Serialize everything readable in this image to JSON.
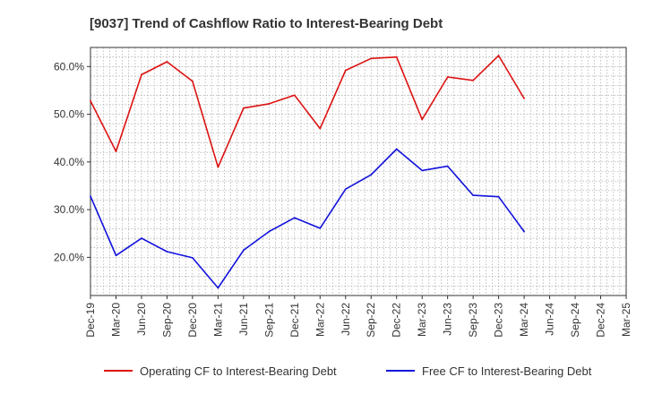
{
  "chart_data": {
    "type": "line",
    "title": "[9037]  Trend of Cashflow Ratio to Interest-Bearing Debt",
    "xlabel": "",
    "ylabel": "",
    "categories": [
      "Dec-19",
      "Mar-20",
      "Jun-20",
      "Sep-20",
      "Dec-20",
      "Mar-21",
      "Jun-21",
      "Sep-21",
      "Dec-21",
      "Mar-22",
      "Jun-22",
      "Sep-22",
      "Dec-22",
      "Mar-23",
      "Jun-23",
      "Sep-23",
      "Dec-23",
      "Mar-24",
      "Jun-24",
      "Sep-24",
      "Dec-24",
      "Mar-25"
    ],
    "ylim": [
      12,
      64
    ],
    "yticks": [
      20,
      30,
      40,
      50,
      60
    ],
    "ytick_labels": [
      "20.0%",
      "30.0%",
      "40.0%",
      "50.0%",
      "60.0%"
    ],
    "grid": true,
    "legend_position": "bottom",
    "series": [
      {
        "name": "Operating CF to Interest-Bearing Debt",
        "color": "#dd1111",
        "values": [
          52.8,
          42.2,
          58.3,
          61.0,
          56.9,
          38.9,
          51.3,
          52.2,
          54.0,
          47.0,
          59.2,
          61.7,
          62.0,
          48.9,
          57.8,
          57.1,
          62.3,
          53.3,
          null,
          null,
          null,
          null
        ]
      },
      {
        "name": "Free CF to Interest-Bearing Debt",
        "color": "#1111dd",
        "values": [
          32.8,
          20.4,
          24.0,
          21.2,
          19.9,
          13.6,
          21.5,
          25.4,
          28.3,
          26.1,
          34.3,
          37.3,
          42.7,
          38.2,
          39.1,
          33.0,
          32.7,
          25.4,
          null,
          null,
          null,
          null
        ]
      }
    ]
  }
}
